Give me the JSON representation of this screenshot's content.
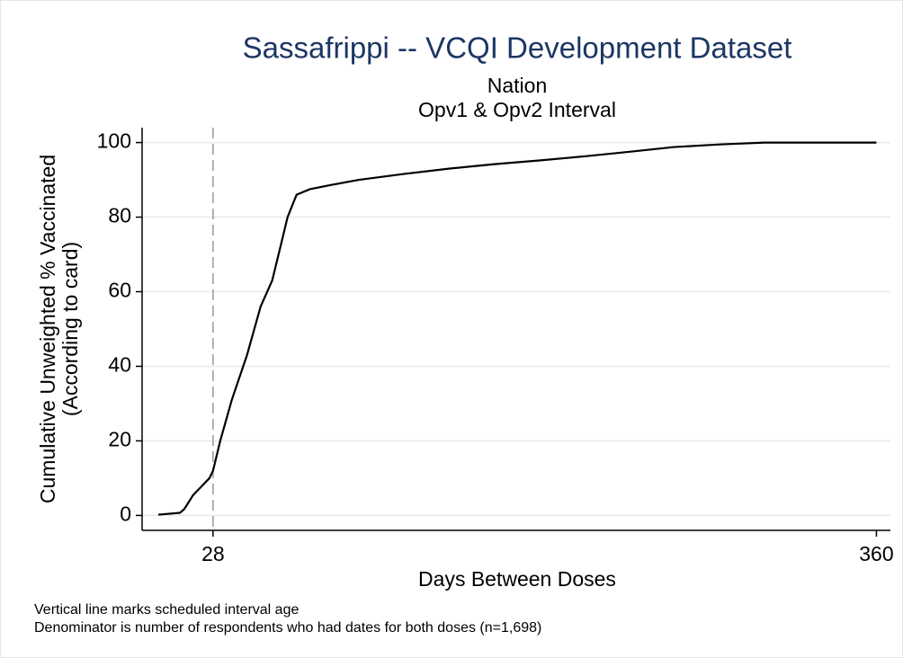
{
  "chart_data": {
    "type": "line",
    "title": "Sassafrippi -- VCQI Development Dataset",
    "subtitle": [
      "Nation",
      "Opv1 & Opv2 Interval"
    ],
    "y_label": [
      "Cumulative Unweighted % Vaccinated",
      "(According to card)"
    ],
    "x_label": "Days Between Doses",
    "notes": [
      "Vertical line marks scheduled interval age",
      "Denominator is number of respondents who had dates for both doses (n=1,698)"
    ],
    "x": [
      0.6,
      11.4,
      13.6,
      18.1,
      22.6,
      26.2,
      28,
      31.6,
      37.4,
      45,
      51.8,
      57.6,
      61.7,
      65.3,
      69.8,
      76.5,
      87.8,
      101,
      123.8,
      146,
      168.8,
      191.3,
      213.8,
      236,
      258.8,
      281.4,
      303.9,
      360
    ],
    "series": [
      {
        "name": "Cumulative",
        "color": "#000000",
        "values": [
          0.2,
          0.7,
          1.7,
          5.5,
          8,
          10,
          12,
          20,
          31,
          43,
          56,
          63,
          72,
          80,
          86,
          87.5,
          88.7,
          90,
          91.6,
          93,
          94.2,
          95.2,
          96.3,
          97.5,
          98.8,
          99.5,
          100,
          100
        ]
      }
    ],
    "reference_line_x": 28,
    "xlim": [
      -7.5,
      367
    ],
    "xticks": [
      28,
      360
    ],
    "ylim": [
      -4,
      104
    ],
    "yticks": [
      0,
      20,
      40,
      60,
      80,
      100
    ],
    "grid": true
  }
}
